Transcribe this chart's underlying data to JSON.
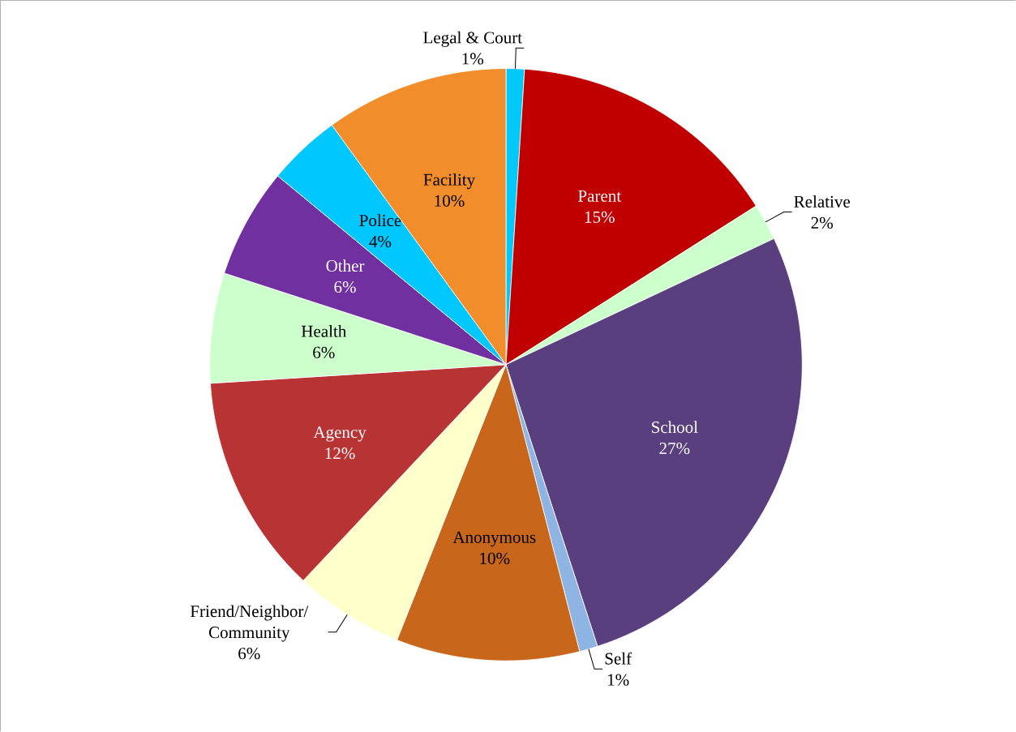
{
  "chart_data": {
    "type": "pie",
    "value_labels": [
      "1%",
      "15%",
      "2%",
      "27%",
      "1%",
      "10%",
      "6%",
      "12%",
      "6%",
      "6%",
      "4%",
      "10%"
    ],
    "categories": [
      "Legal & Court",
      "Parent",
      "Relative",
      "School",
      "Self",
      "Anonymous",
      "Friend/Neighbor/ Community",
      "Agency",
      "Health",
      "Other",
      "Police",
      "Facility"
    ],
    "values": [
      1,
      15,
      2,
      27,
      1,
      10,
      6,
      12,
      6,
      6,
      4,
      10
    ],
    "colors": [
      "#00c8f8",
      "#c00000",
      "#ccffcc",
      "#5a3f7e",
      "#8eb4e3",
      "#c8661c",
      "#ffffcc",
      "#b83434",
      "#ccffcc",
      "#7030a0",
      "#00c8ff",
      "#f18d2a"
    ]
  }
}
